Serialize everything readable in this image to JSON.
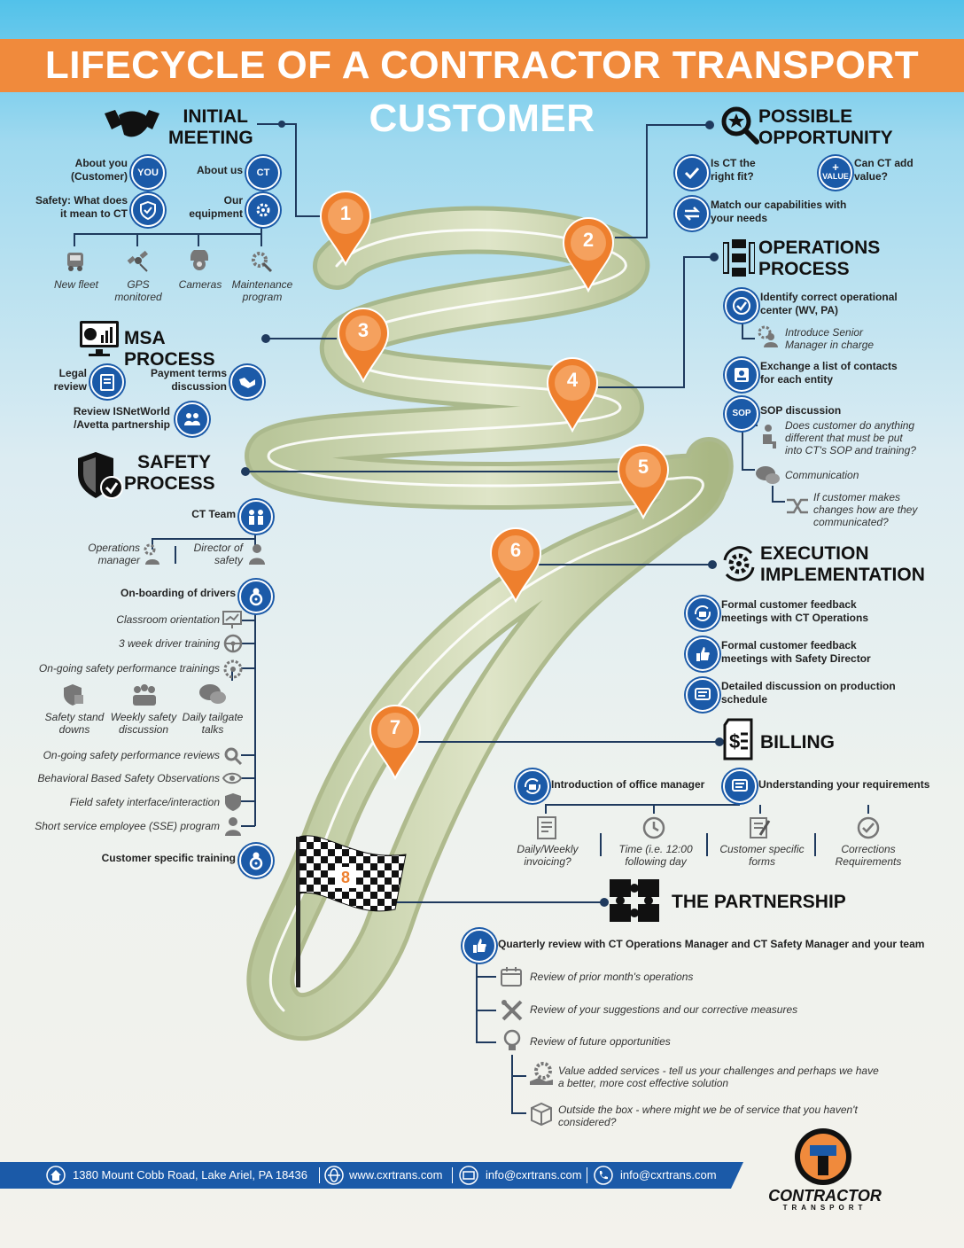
{
  "title": "LIFECYCLE OF A CONTRACTOR TRANSPORT CUSTOMER",
  "pins": [
    "1",
    "2",
    "3",
    "4",
    "5",
    "6",
    "7",
    "8"
  ],
  "initial_meeting": {
    "title_1": "INITIAL",
    "title_2": "MEETING",
    "about_you": "About you (Customer)",
    "you_badge": "YOU",
    "about_us": "About us",
    "ct_badge": "CT",
    "safety": "Safety: What does it mean to CT",
    "equipment": "Our equipment",
    "items": [
      "New fleet",
      "GPS monitored",
      "Cameras",
      "Maintenance program"
    ]
  },
  "possible_opportunity": {
    "title_1": "POSSIBLE",
    "title_2": "OPPORTUNITY",
    "fit": "Is CT the right fit?",
    "value_badge_plus": "+",
    "value_badge": "VALUE",
    "add_value": "Can CT add value?",
    "match": "Match our capabilities with your needs"
  },
  "operations_process": {
    "title_1": "OPERATIONS",
    "title_2": "PROCESS",
    "identify": "Identify correct operational center (WV, PA)",
    "introduce": "Introduce Senior Manager in charge",
    "exchange": "Exchange a list of contacts for each entity",
    "sop_badge": "SOP",
    "sop": "SOP discussion",
    "sop_question": "Does customer do anything different that must be put into CT's SOP and training?",
    "communication": "Communication",
    "changes": "If customer makes changes how are they communicated?"
  },
  "msa_process": {
    "title": "MSA PROCESS",
    "legal": "Legal review",
    "payment": "Payment terms discussion",
    "review": "Review ISNetWorld /Avetta partnership"
  },
  "safety_process": {
    "title_1": "SAFETY",
    "title_2": "PROCESS",
    "ct_team": "CT Team",
    "ops_manager": "Operations manager",
    "director": "Director of safety",
    "onboarding": "On-boarding of drivers",
    "list": [
      "Classroom orientation",
      "3 week driver training",
      "On-going safety performance trainings"
    ],
    "sub": [
      "Safety stand downs",
      "Weekly safety discussion",
      "Daily tailgate talks"
    ],
    "list2": [
      "On-going safety performance reviews",
      "Behavioral Based Safety Observations",
      "Field safety interface/interaction",
      "Short service employee (SSE) program"
    ],
    "customer_training": "Customer specific training"
  },
  "execution": {
    "title_1": "EXECUTION",
    "title_2": "IMPLEMENTATION",
    "items": [
      "Formal customer feedback meetings with CT Operations",
      "Formal customer feedback meetings with Safety Director",
      "Detailed discussion on production schedule"
    ]
  },
  "billing": {
    "title": "BILLING",
    "office": "Introduction of office manager",
    "requirements": "Understanding your requirements",
    "items": [
      "Daily/Weekly invoicing?",
      "Time (i.e. 12:00 following day",
      "Customer specific forms",
      "Corrections Requirements"
    ]
  },
  "partnership": {
    "title": "THE PARTNERSHIP",
    "quarterly": "Quarterly review with CT Operations Manager and CT Safety Manager and your team",
    "items": [
      "Review of prior month's operations",
      "Review of your suggestions and our corrective measures",
      "Review of future opportunities"
    ],
    "sub": [
      "Value added services - tell us your challenges and perhaps we have a better, more cost effective solution",
      "Outside the box - where might we be of service that you haven't considered?"
    ]
  },
  "footer": {
    "address": "1380 Mount Cobb Road, Lake Ariel, PA 18436",
    "website": "www.cxrtrans.com",
    "email1": "info@cxrtrans.com",
    "email2": "info@cxrtrans.com"
  },
  "logo": {
    "name": "CONTRACTOR",
    "sub": "TRANSPORT"
  },
  "colors": {
    "orange": "#f08a3c",
    "blue": "#1b5aa8",
    "navy": "#1f3a5e"
  }
}
